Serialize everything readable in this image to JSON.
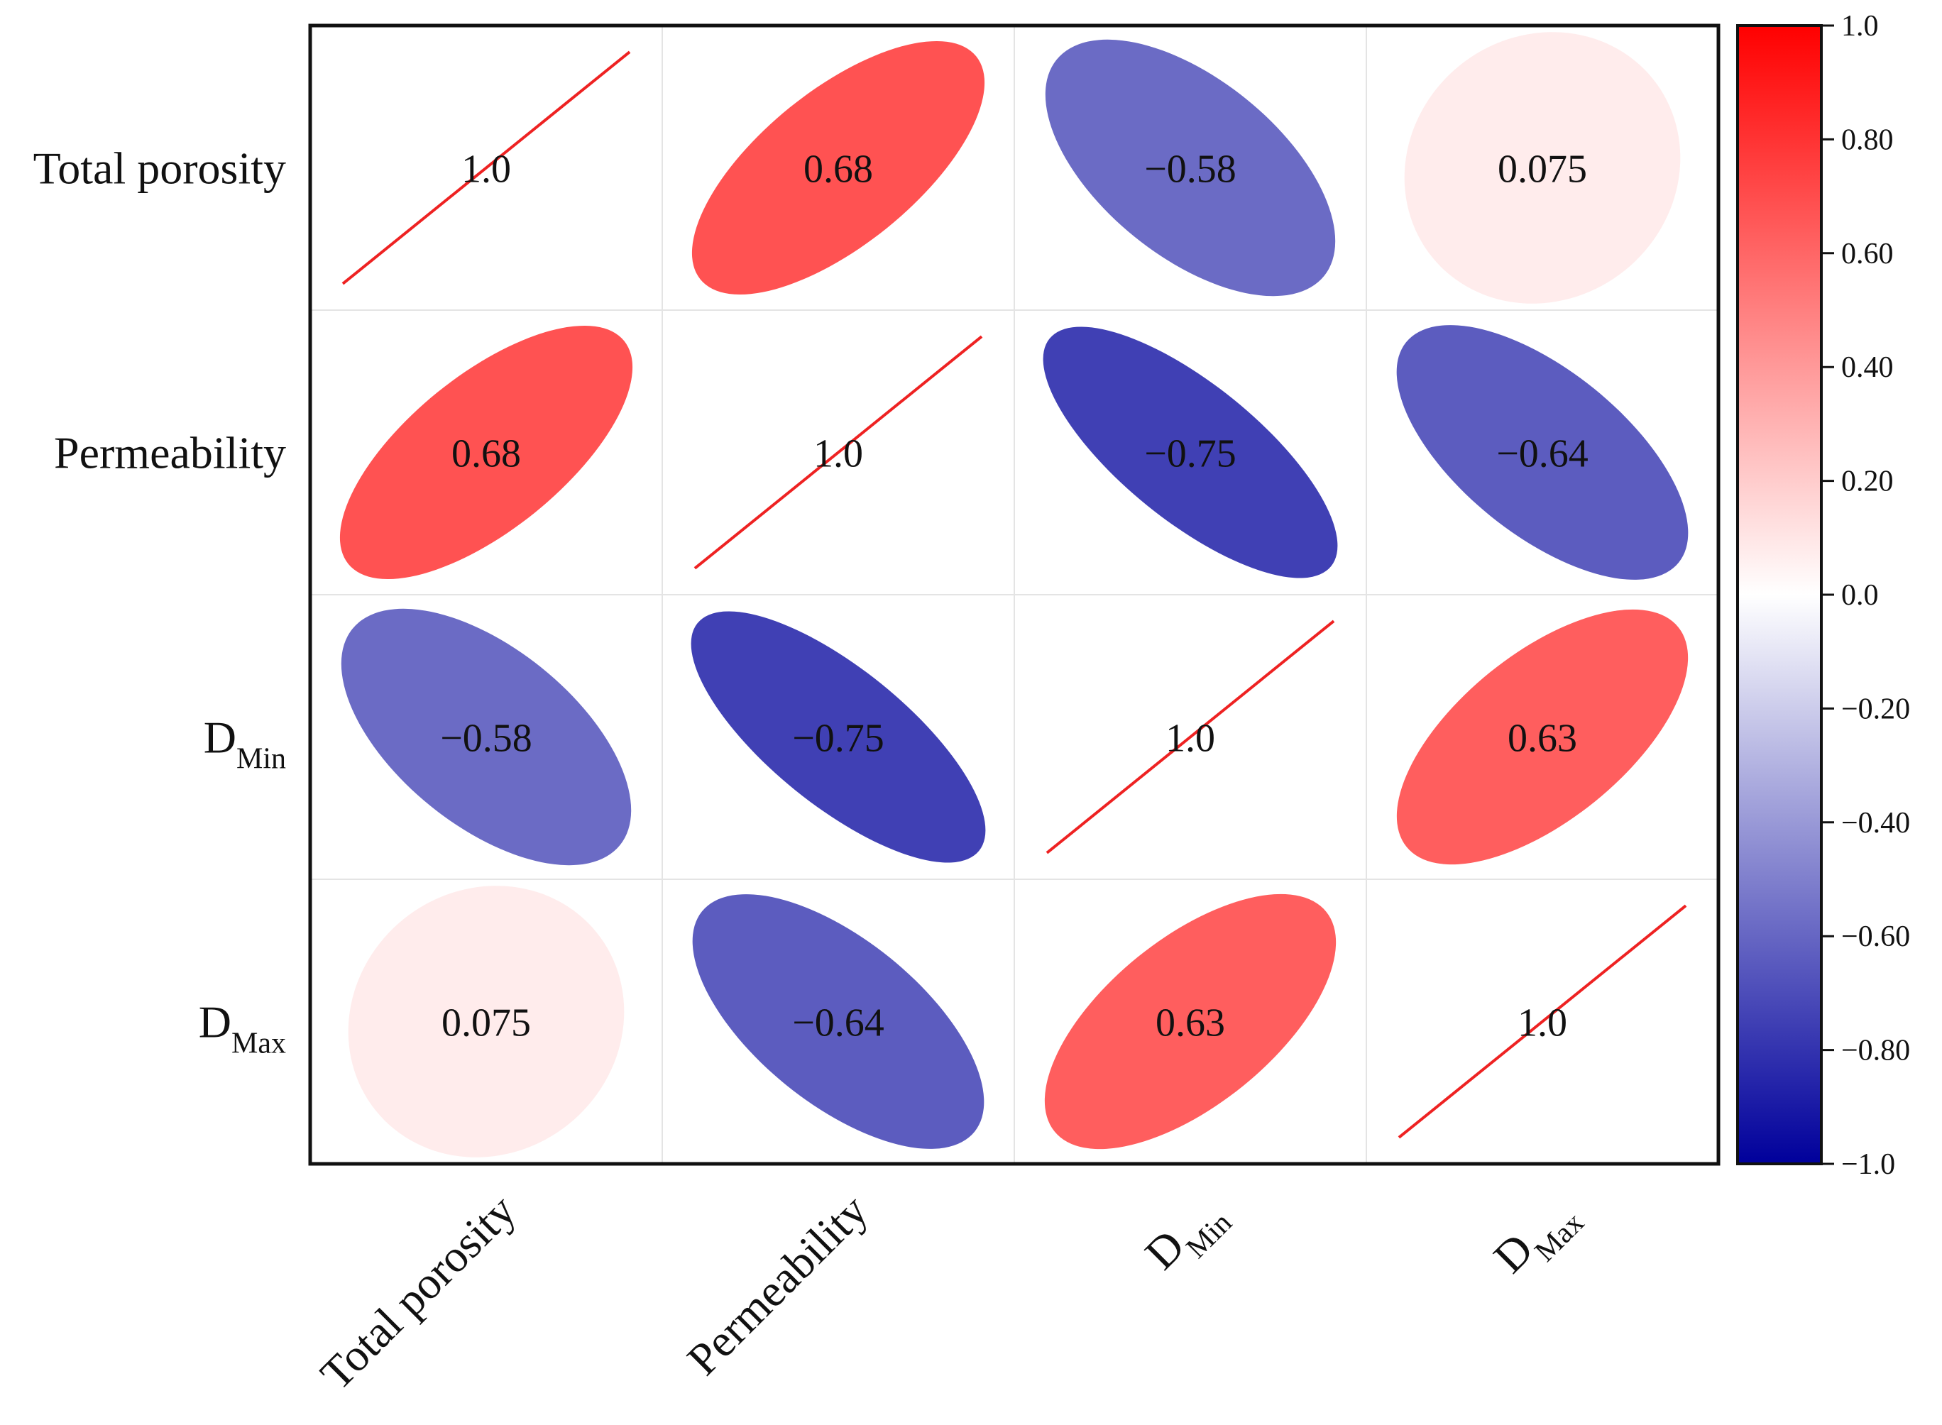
{
  "chart_data": {
    "type": "heatmap",
    "subtype": "correlation-ellipse-matrix",
    "variables": [
      {
        "main": "Total porosity",
        "sub": ""
      },
      {
        "main": "Permeability",
        "sub": ""
      },
      {
        "main": "D",
        "sub": "Min"
      },
      {
        "main": "D",
        "sub": "Max"
      }
    ],
    "matrix": [
      [
        1.0,
        0.68,
        -0.58,
        0.075
      ],
      [
        0.68,
        1.0,
        -0.75,
        -0.64
      ],
      [
        -0.58,
        -0.75,
        1.0,
        0.63
      ],
      [
        0.075,
        -0.64,
        0.63,
        1.0
      ]
    ],
    "cell_labels": [
      [
        "1.0",
        "0.68",
        "−0.58",
        "0.075"
      ],
      [
        "0.68",
        "1.0",
        "−0.75",
        "−0.64"
      ],
      [
        "−0.58",
        "−0.75",
        "1.0",
        "0.63"
      ],
      [
        "0.075",
        "−0.64",
        "0.63",
        "1.0"
      ]
    ],
    "colorbar": {
      "range": [
        -1.0,
        1.0
      ],
      "tick_values": [
        1.0,
        0.8,
        0.6,
        0.4,
        0.2,
        0.0,
        -0.2,
        -0.4,
        -0.6,
        -0.8,
        -1.0
      ],
      "tick_labels": [
        "1.0",
        "0.80",
        "0.60",
        "0.40",
        "0.20",
        "0.0",
        "−0.20",
        "−0.40",
        "−0.60",
        "−0.80",
        "−1.0"
      ],
      "colors": {
        "neg": "#00009b",
        "mid": "#ffffff",
        "pos": "#ff0000"
      }
    },
    "diagonal_line_color": "#ee2222",
    "grid": true,
    "legend": "right"
  }
}
